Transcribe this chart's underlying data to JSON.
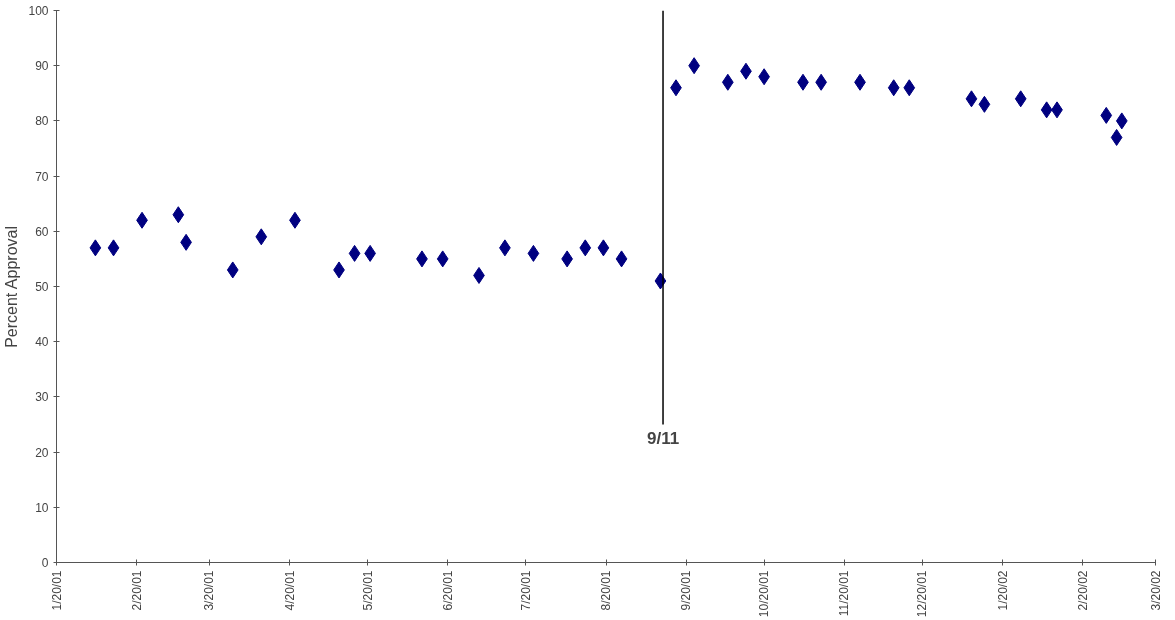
{
  "chart_data": {
    "type": "scatter",
    "ylabel": "Percent Approval",
    "marker": "diamond",
    "grid": false,
    "x": [
      "2001-02-04",
      "2001-02-11",
      "2001-02-22",
      "2001-03-08",
      "2001-03-11",
      "2001-03-29",
      "2001-04-09",
      "2001-04-22",
      "2001-05-09",
      "2001-05-15",
      "2001-05-21",
      "2001-06-10",
      "2001-06-18",
      "2001-07-02",
      "2001-07-12",
      "2001-07-23",
      "2001-08-05",
      "2001-08-12",
      "2001-08-19",
      "2001-08-26",
      "2001-09-10",
      "2001-09-16",
      "2001-09-23",
      "2001-10-06",
      "2001-10-13",
      "2001-10-20",
      "2001-11-04",
      "2001-11-11",
      "2001-11-26",
      "2001-12-09",
      "2001-12-15",
      "2002-01-08",
      "2002-01-13",
      "2002-01-27",
      "2002-02-06",
      "2002-02-10",
      "2002-03-01",
      "2002-03-05",
      "2002-03-07"
    ],
    "series": [
      {
        "color": "#000080",
        "values": [
          57,
          57,
          62,
          63,
          58,
          53,
          59,
          62,
          53,
          56,
          56,
          55,
          55,
          52,
          57,
          56,
          55,
          57,
          57,
          55,
          51,
          86,
          90,
          87,
          89,
          88,
          87,
          87,
          87,
          86,
          86,
          84,
          83,
          84,
          82,
          82,
          81,
          77,
          80
        ]
      }
    ],
    "ylim": [
      0,
      100
    ],
    "yticks": [
      0,
      10,
      20,
      30,
      40,
      50,
      60,
      70,
      80,
      90,
      100
    ],
    "xlim": [
      "2001-01-20",
      "2002-03-20"
    ],
    "xticks": [
      {
        "value": "2001-01-20",
        "label": "1/20/01"
      },
      {
        "value": "2001-02-20",
        "label": "2/20/01"
      },
      {
        "value": "2001-03-20",
        "label": "3/20/01"
      },
      {
        "value": "2001-04-20",
        "label": "4/20/01"
      },
      {
        "value": "2001-05-20",
        "label": "5/20/01"
      },
      {
        "value": "2001-06-20",
        "label": "6/20/01"
      },
      {
        "value": "2001-07-20",
        "label": "7/20/01"
      },
      {
        "value": "2001-08-20",
        "label": "8/20/01"
      },
      {
        "value": "2001-09-20",
        "label": "9/20/01"
      },
      {
        "value": "2001-10-20",
        "label": "10/20/01"
      },
      {
        "value": "2001-11-20",
        "label": "11/20/01"
      },
      {
        "value": "2001-12-20",
        "label": "12/20/01"
      },
      {
        "value": "2002-01-20",
        "label": "1/20/02"
      },
      {
        "value": "2002-02-20",
        "label": "2/20/02"
      },
      {
        "value": "2002-03-20",
        "label": "3/20/02"
      }
    ],
    "ref_lines": [
      {
        "axis": "x",
        "value": "2001-09-11",
        "label": "9/11",
        "color": "#000000"
      }
    ]
  }
}
